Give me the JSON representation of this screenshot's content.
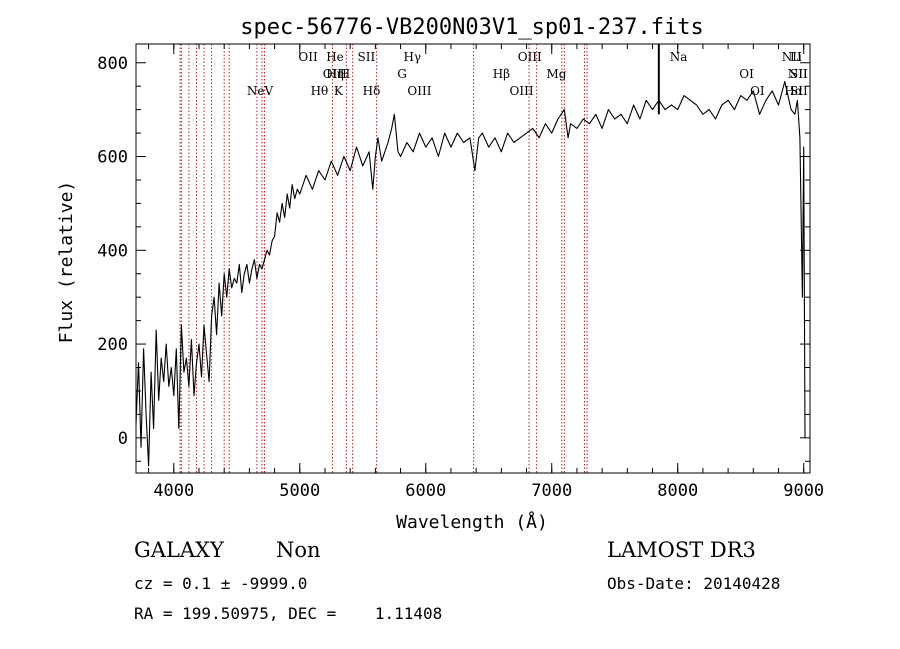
{
  "chart_data": {
    "type": "line",
    "title": "spec-56776-VB200N03V1_sp01-237.fits",
    "xlabel": "Wavelength (Å)",
    "ylabel": "Flux (relative)",
    "xlim": [
      3700,
      9050
    ],
    "ylim": [
      -75,
      840
    ],
    "xticks": [
      4000,
      5000,
      6000,
      7000,
      8000,
      9000
    ],
    "yticks": [
      0,
      200,
      400,
      600,
      800
    ],
    "grid": false,
    "series": [
      {
        "name": "flux",
        "x": [
          3700,
          3720,
          3740,
          3760,
          3780,
          3800,
          3820,
          3840,
          3860,
          3880,
          3900,
          3920,
          3940,
          3960,
          3980,
          4000,
          4020,
          4040,
          4060,
          4080,
          4100,
          4120,
          4140,
          4160,
          4180,
          4200,
          4220,
          4240,
          4260,
          4280,
          4300,
          4320,
          4340,
          4360,
          4380,
          4400,
          4420,
          4440,
          4460,
          4480,
          4500,
          4520,
          4540,
          4560,
          4580,
          4600,
          4620,
          4640,
          4660,
          4680,
          4700,
          4720,
          4740,
          4760,
          4780,
          4800,
          4820,
          4840,
          4860,
          4880,
          4900,
          4920,
          4940,
          4960,
          4980,
          5000,
          5050,
          5100,
          5150,
          5200,
          5250,
          5300,
          5350,
          5400,
          5450,
          5500,
          5550,
          5580,
          5600,
          5620,
          5650,
          5700,
          5730,
          5750,
          5780,
          5800,
          5850,
          5900,
          5950,
          6000,
          6050,
          6100,
          6150,
          6200,
          6250,
          6300,
          6350,
          6390,
          6420,
          6450,
          6500,
          6550,
          6600,
          6650,
          6700,
          6750,
          6800,
          6850,
          6900,
          6950,
          7000,
          7050,
          7100,
          7130,
          7150,
          7200,
          7250,
          7300,
          7350,
          7400,
          7450,
          7500,
          7550,
          7600,
          7650,
          7700,
          7750,
          7800,
          7850,
          7900,
          7950,
          8000,
          8050,
          8100,
          8150,
          8200,
          8250,
          8300,
          8350,
          8400,
          8450,
          8500,
          8550,
          8600,
          8650,
          8700,
          8750,
          8800,
          8850,
          8900,
          8930,
          8950,
          8970,
          8990,
          9000,
          9010
        ],
        "values": [
          30,
          160,
          -20,
          190,
          50,
          -60,
          140,
          20,
          230,
          80,
          170,
          120,
          200,
          110,
          150,
          90,
          190,
          20,
          240,
          140,
          170,
          110,
          210,
          90,
          160,
          200,
          130,
          240,
          180,
          120,
          260,
          300,
          220,
          330,
          260,
          350,
          300,
          360,
          320,
          340,
          330,
          370,
          310,
          350,
          370,
          330,
          360,
          380,
          340,
          370,
          360,
          380,
          400,
          390,
          420,
          430,
          480,
          460,
          500,
          470,
          520,
          490,
          540,
          510,
          530,
          520,
          560,
          530,
          570,
          550,
          590,
          560,
          600,
          570,
          620,
          580,
          610,
          530,
          600,
          640,
          590,
          630,
          660,
          690,
          610,
          600,
          630,
          610,
          650,
          620,
          640,
          600,
          650,
          620,
          650,
          630,
          640,
          570,
          640,
          650,
          620,
          640,
          610,
          650,
          630,
          640,
          650,
          660,
          640,
          670,
          650,
          680,
          700,
          640,
          670,
          660,
          680,
          670,
          690,
          660,
          700,
          680,
          690,
          670,
          710,
          680,
          720,
          700,
          720,
          700,
          710,
          700,
          730,
          720,
          710,
          690,
          700,
          680,
          710,
          720,
          700,
          730,
          720,
          740,
          690,
          720,
          740,
          710,
          760,
          700,
          690,
          720,
          640,
          300,
          620,
          0
        ]
      }
    ],
    "spikes": [
      {
        "x": 7850,
        "value": 840
      }
    ],
    "annotations": [
      {
        "label": "NeV",
        "x": 3426,
        "row": 3
      },
      {
        "label": "OII",
        "x": 3727,
        "row": 1
      },
      {
        "label": "OIII",
        "x": 3869,
        "row": 2
      },
      {
        "label": "He",
        "x": 3889,
        "row": 1
      },
      {
        "label": "Hη",
        "x": 3889,
        "row": 2
      },
      {
        "label": "H",
        "x": 3968,
        "row": 2
      },
      {
        "label": "K",
        "x": 3934,
        "row": 3
      },
      {
        "label": "Hθ",
        "x": 3798,
        "row": 3
      },
      {
        "label": "SII",
        "x": 4072,
        "row": 1
      },
      {
        "label": "Hδ",
        "x": 4102,
        "row": 3
      },
      {
        "label": "Hγ",
        "x": 4340,
        "row": 1
      },
      {
        "label": "G",
        "x": 4304,
        "row": 2
      },
      {
        "label": "OIII",
        "x": 4363,
        "row": 3
      },
      {
        "label": "OIII",
        "x": 5007,
        "row": 1
      },
      {
        "label": "Hβ",
        "x": 4861,
        "row": 2
      },
      {
        "label": "OIII",
        "x": 4959,
        "row": 3
      },
      {
        "label": "Mg",
        "x": 5175,
        "row": 2
      },
      {
        "label": "Na",
        "x": 5894,
        "row": 1
      },
      {
        "label": "OI",
        "x": 6300,
        "row": 2
      },
      {
        "label": "OI",
        "x": 6363,
        "row": 3
      },
      {
        "label": "NII",
        "x": 6548,
        "row": 1
      },
      {
        "label": "NII",
        "x": 6583,
        "row": 2
      },
      {
        "label": "Hα",
        "x": 6563,
        "row": 3
      },
      {
        "label": "Li",
        "x": 6708,
        "row": 1
      },
      {
        "label": "SII",
        "x": 6716,
        "row": 2
      },
      {
        "label": "SII",
        "x": 6731,
        "row": 3
      }
    ],
    "line_markers_x": [
      4050,
      4060,
      4120,
      4180,
      4240,
      4300,
      4400,
      4440,
      4660,
      4700,
      4720,
      5260,
      5370,
      5420,
      5610,
      6380,
      6820,
      6880,
      7080,
      7100,
      7260,
      7280
    ]
  },
  "info": {
    "class": "GALAXY",
    "subclass": "Non",
    "survey": "LAMOST DR3",
    "cz_line": "cz = 0.1 ± -9999.0",
    "obs_date": "Obs-Date: 20140428",
    "radec_line": "RA = 199.50975, DEC =    1.11408"
  },
  "colors": {
    "spectrum": "#000000",
    "marker": "#b22222",
    "axis": "#000000",
    "background": "#ffffff"
  }
}
